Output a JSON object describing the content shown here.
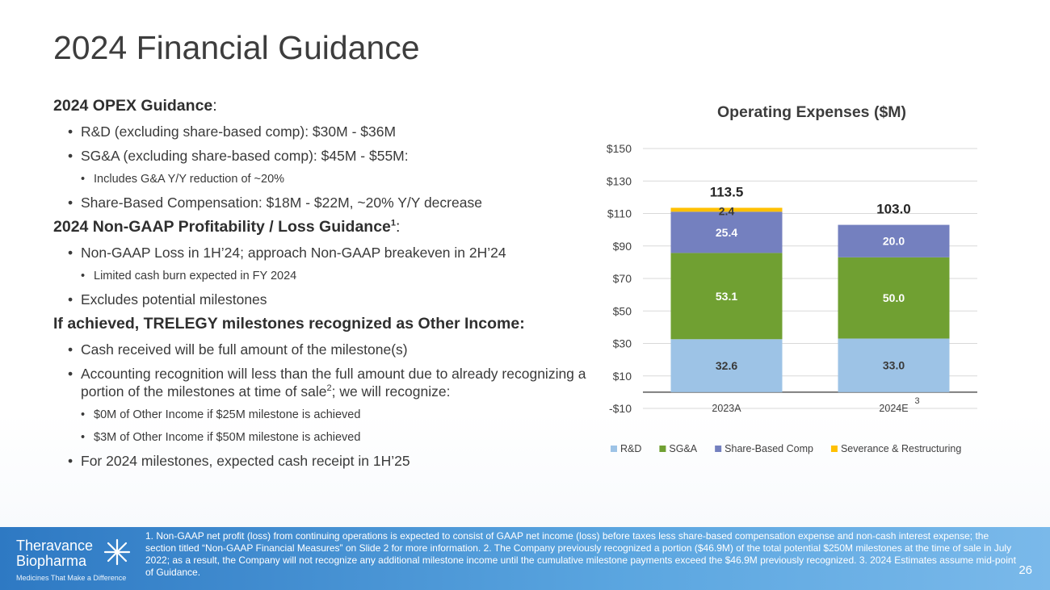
{
  "slide": {
    "title": "2024 Financial Guidance",
    "page_number": "26"
  },
  "guidance": {
    "opex_heading": "2024 OPEX Guidance",
    "opex_heading_suffix": ":",
    "rd": "R&D (excluding share-based comp): $30M - $36M",
    "sga": "SG&A (excluding share-based comp): $45M - $55M:",
    "ga_reduction": "Includes G&A Y/Y reduction of ~20%",
    "sbc": "Share-Based Compensation: $18M - $22M, ~20% Y/Y decrease",
    "profit_heading": "2024 Non-GAAP Profitability / Loss Guidance",
    "profit_heading_sup": "1",
    "profit_heading_suffix": ":",
    "loss": "Non-GAAP Loss in 1H’24; approach Non-GAAP breakeven in 2H’24",
    "cash_burn": "Limited cash burn expected in FY 2024",
    "excludes": "Excludes potential milestones",
    "trelegy_heading": "If achieved, TRELEGY milestones recognized as Other Income:",
    "cash_received": "Cash received will be full amount of the milestone(s)",
    "accounting": "Accounting recognition will less than the full amount due to already recognizing a portion of the milestones at time of sale",
    "accounting_sup": "2",
    "accounting_suffix": "; we will recognize:",
    "zero_m": "$0M of Other Income if $25M milestone is achieved",
    "three_m": "$3M of Other Income if $50M milestone is achieved",
    "cash_receipt": "For 2024 milestones, expected cash receipt in 1H’25"
  },
  "chart_data": {
    "type": "bar",
    "stacked": true,
    "title": "Operating Expenses ($M)",
    "categories": [
      "2023A",
      "2024E"
    ],
    "category_superscripts": [
      "",
      "3"
    ],
    "series": [
      {
        "name": "R&D",
        "values": [
          32.6,
          33.0
        ],
        "color": "#9dc3e6",
        "labels": [
          "32.6",
          "33.0"
        ]
      },
      {
        "name": "SG&A",
        "values": [
          53.1,
          50.0
        ],
        "color": "#70a032",
        "labels": [
          "53.1",
          "50.0"
        ]
      },
      {
        "name": "Share-Based Comp",
        "values": [
          25.4,
          20.0
        ],
        "color": "#7480bf",
        "labels": [
          "25.4",
          "20.0"
        ]
      },
      {
        "name": "Severance & Restructuring",
        "values": [
          2.4,
          0
        ],
        "color": "#ffc000",
        "labels": [
          "2.4",
          ""
        ]
      }
    ],
    "totals": [
      "113.5",
      "103.0"
    ],
    "ylim": [
      -10,
      150
    ],
    "yticks": [
      150,
      130,
      110,
      90,
      70,
      50,
      30,
      10,
      -10
    ],
    "ytick_labels": [
      "$150",
      "$130",
      "$110",
      "$90",
      "$70",
      "$50",
      "$30",
      "$10",
      "-$10"
    ],
    "grid": true,
    "legend": "bottom"
  },
  "footer": {
    "logo_line1": "Theravance",
    "logo_line2": "Biopharma",
    "logo_tagline": "Medicines That Make a Difference",
    "footnote": "1. Non-GAAP net profit (loss) from continuing operations is expected to consist of GAAP net income (loss) before taxes less share-based compensation expense and non-cash interest expense; the section titled “Non-GAAP Financial Measures” on Slide 2 for more information. 2. The Company previously recognized a portion ($46.9M) of the total potential $250M milestones at the time of sale in July 2022; as a result, the Company will not recognize any additional milestone income until the cumulative milestone payments exceed the $46.9M previously recognized. 3. 2024 Estimates assume mid-point of Guidance."
  },
  "colors": {
    "footer_start": "#2e79c3",
    "footer_end": "#7ab9ea"
  }
}
